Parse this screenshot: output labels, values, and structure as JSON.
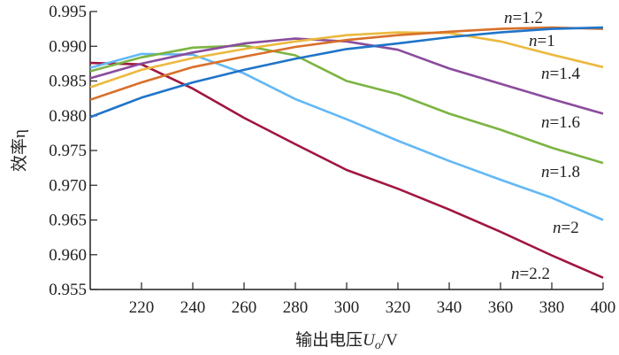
{
  "chart_data": {
    "type": "line",
    "title": "",
    "xlabel": "输出电压U_o/V",
    "xlabel_parts": {
      "main": "输出电压",
      "var": "U",
      "sub": "o",
      "unit": "/V"
    },
    "ylabel": "效率η",
    "ylabel_parts": {
      "main": "效率",
      "var": "η"
    },
    "xlim": [
      200,
      400
    ],
    "ylim": [
      0.955,
      0.995
    ],
    "xticks": [
      220,
      240,
      260,
      280,
      300,
      320,
      340,
      360,
      380,
      400
    ],
    "yticks": [
      "0.955",
      "0.960",
      "0.965",
      "0.970",
      "0.975",
      "0.980",
      "0.985",
      "0.990",
      "0.995"
    ],
    "grid": false,
    "x": [
      200,
      220,
      240,
      260,
      280,
      300,
      320,
      340,
      360,
      380,
      400
    ],
    "series": [
      {
        "name": "n=1",
        "n": "1",
        "color": "#1f74c8",
        "values": [
          0.9798,
          0.9826,
          0.9848,
          0.9866,
          0.9882,
          0.9896,
          0.9904,
          0.9913,
          0.992,
          0.9925,
          0.9927
        ]
      },
      {
        "name": "n=1.2",
        "n": "1.2",
        "color": "#d9702a",
        "values": [
          0.9823,
          0.9848,
          0.987,
          0.9885,
          0.9899,
          0.9909,
          0.9916,
          0.9921,
          0.9925,
          0.9927,
          0.9925
        ]
      },
      {
        "name": "n=1.4",
        "n": "1.4",
        "color": "#ecb93f",
        "values": [
          0.9841,
          0.9866,
          0.9883,
          0.9896,
          0.9907,
          0.9916,
          0.992,
          0.9919,
          0.9907,
          0.9888,
          0.987
        ]
      },
      {
        "name": "n=1.6",
        "n": "1.6",
        "color": "#8a4c9c",
        "values": [
          0.9854,
          0.9875,
          0.9891,
          0.9904,
          0.9911,
          0.9907,
          0.9895,
          0.9868,
          0.9846,
          0.9824,
          0.9803
        ]
      },
      {
        "name": "n=1.8",
        "n": "1.8",
        "color": "#7cb443",
        "values": [
          0.9864,
          0.9884,
          0.9898,
          0.9901,
          0.9887,
          0.985,
          0.9831,
          0.9803,
          0.978,
          0.9754,
          0.9732
        ]
      },
      {
        "name": "n=2",
        "n": "2",
        "color": "#63b8f5",
        "values": [
          0.9869,
          0.9889,
          0.9888,
          0.9861,
          0.9824,
          0.9795,
          0.9764,
          0.9735,
          0.9708,
          0.9682,
          0.965
        ]
      },
      {
        "name": "n=2.2",
        "n": "2.2",
        "color": "#a0173f",
        "values": [
          0.9876,
          0.9874,
          0.9839,
          0.9797,
          0.9759,
          0.9722,
          0.9695,
          0.9665,
          0.9633,
          0.9599,
          0.9567
        ]
      }
    ]
  }
}
